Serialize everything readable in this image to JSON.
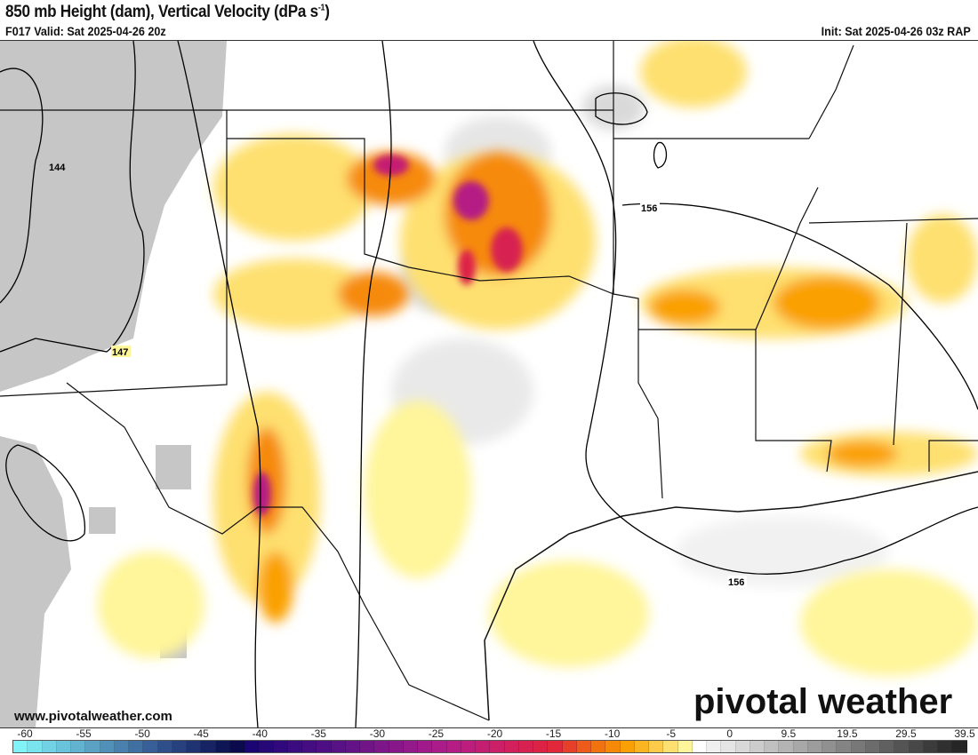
{
  "header": {
    "title": "850 mb Height (dam), Vertical Velocity (dPa s",
    "title_sup": "-1",
    "title_close": ")",
    "valid": "F017 Valid: Sat 2025-04-26 20z",
    "init": "Init: Sat 2025-04-26 03z RAP"
  },
  "map": {
    "contour_labels": [
      "144",
      "147",
      "156",
      "156"
    ],
    "website": "www.pivotalweather.com",
    "logo": "pivotal weather"
  },
  "colorbar": {
    "ticks": [
      "-60",
      "-55",
      "-50",
      "-45",
      "-40",
      "-35",
      "-30",
      "-25",
      "-20",
      "-15",
      "-10",
      "-5",
      "0",
      "9.5",
      "19.5",
      "29.5",
      "39.5"
    ],
    "colors": [
      "#7ff3f8",
      "#79e4ee",
      "#70d2e4",
      "#69c3db",
      "#62b3d0",
      "#5aa1c4",
      "#5190b9",
      "#4980ae",
      "#406fa2",
      "#385f97",
      "#2f4f8b",
      "#27417f",
      "#1f3272",
      "#172464",
      "#0f1656",
      "#0a0a4c",
      "#1a0573",
      "#260879",
      "#300a7c",
      "#3a0c80",
      "#440d82",
      "#4e0f84",
      "#591186",
      "#641287",
      "#701488",
      "#7c1689",
      "#88178a",
      "#94198b",
      "#a01a8b",
      "#ab1b8a",
      "#b51c84",
      "#bd1d7c",
      "#c41e72",
      "#cb1f67",
      "#d1205c",
      "#d72151",
      "#dc2346",
      "#e1283a",
      "#e7402a",
      "#ec5a1c",
      "#f17310",
      "#f68a08",
      "#faa005",
      "#fbb522",
      "#fdca4a",
      "#fee070",
      "#fff59a",
      "#ffffff",
      "#f0f0f0",
      "#e4e4e4",
      "#d8d8d8",
      "#cccccc",
      "#c0c0c0",
      "#b4b4b4",
      "#a8a8a8",
      "#9c9c9c",
      "#909090",
      "#848484",
      "#787878",
      "#6c6c6c",
      "#606060",
      "#545454",
      "#484848",
      "#3c3c3c",
      "#303030",
      "#262626"
    ]
  }
}
